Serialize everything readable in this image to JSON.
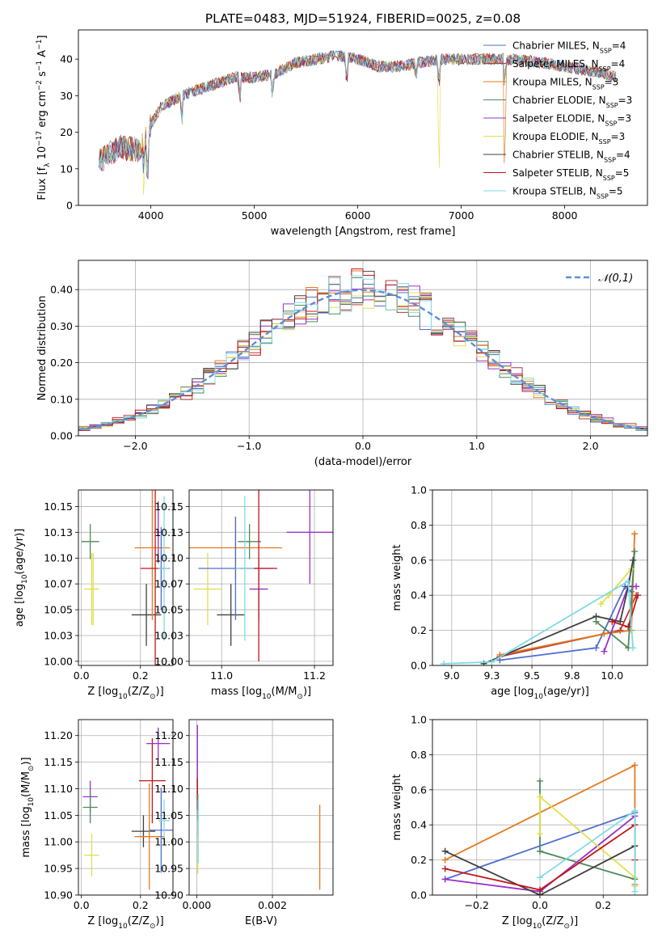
{
  "title": "PLATE=0483, MJD=51924, FIBERID=0025, z=0.08",
  "colors": {
    "grid": "#b0b0b0",
    "axis": "#000000"
  },
  "series_styles": [
    {
      "name": "Chabrier MILES, N_SSP=4",
      "color": "#4f6fcf"
    },
    {
      "name": "Salpeter MILES, N_SSP=4",
      "color": "#b23c3c"
    },
    {
      "name": "Kroupa MILES, N_SSP=3",
      "color": "#e37a1f"
    },
    {
      "name": "Chabrier ELODIE, N_SSP=3",
      "color": "#4e8a5a"
    },
    {
      "name": "Salpeter ELODIE, N_SSP=3",
      "color": "#9b30c9"
    },
    {
      "name": "Kroupa ELODIE, N_SSP=3",
      "color": "#e0e050"
    },
    {
      "name": "Chabrier STELIB, N_SSP=4",
      "color": "#404040"
    },
    {
      "name": "Salpeter STELIB, N_SSP=5",
      "color": "#c01818"
    },
    {
      "name": "Kroupa STELIB, N_SSP=5",
      "color": "#7ddbe6"
    }
  ],
  "chart_data": [
    {
      "id": "spectrum",
      "type": "line",
      "xlabel": "wavelength [Angstrom, rest frame]",
      "ylabel": "Flux [f_λ 10^-17 erg cm^-2 s^-1 A^-1]",
      "xlim": [
        3300,
        8800
      ],
      "ylim": [
        0,
        48
      ],
      "xticks": [
        4000,
        5000,
        6000,
        7000,
        8000
      ],
      "yticks": [
        0,
        10,
        20,
        30,
        40
      ],
      "grid": false,
      "legend_position": "upper-right",
      "legend": [
        {
          "label": "Chabrier MILES, N",
          "sub": "SSP",
          "suffix": "=4"
        },
        {
          "label": "Salpeter MILES, N",
          "sub": "SSP",
          "suffix": "=4"
        },
        {
          "label": "Kroupa MILES, N",
          "sub": "SSP",
          "suffix": "=3"
        },
        {
          "label": "Chabrier ELODIE, N",
          "sub": "SSP",
          "suffix": "=3"
        },
        {
          "label": "Salpeter ELODIE, N",
          "sub": "SSP",
          "suffix": "=3"
        },
        {
          "label": "Kroupa ELODIE, N",
          "sub": "SSP",
          "suffix": "=3"
        },
        {
          "label": "Chabrier STELIB, N",
          "sub": "SSP",
          "suffix": "=4"
        },
        {
          "label": "Salpeter STELIB, N",
          "sub": "SSP",
          "suffix": "=5"
        },
        {
          "label": "Kroupa STELIB, N",
          "sub": "SSP",
          "suffix": "=5"
        }
      ],
      "continuum": {
        "x": [
          3500,
          3700,
          3900,
          4000,
          4100,
          4300,
          4500,
          4800,
          5000,
          5200,
          5400,
          5600,
          5800,
          6000,
          6200,
          6400,
          6600,
          6800,
          7000,
          7200,
          7500,
          7800,
          8000,
          8200,
          8400,
          8500
        ],
        "y": [
          12,
          16,
          15,
          22,
          27,
          30,
          32,
          35,
          35,
          36,
          39,
          40,
          41,
          40,
          38,
          38,
          39,
          40,
          40,
          40,
          40,
          39,
          38,
          37,
          36,
          35
        ]
      },
      "dips": [
        {
          "x": 3934,
          "y": 0
        },
        {
          "x": 3968,
          "y": 4
        },
        {
          "x": 4300,
          "y": 22
        },
        {
          "x": 4861,
          "y": 28
        },
        {
          "x": 5175,
          "y": 29
        },
        {
          "x": 5893,
          "y": 32
        },
        {
          "x": 6563,
          "y": 34
        },
        {
          "x": 6785,
          "y": 0
        },
        {
          "x": 7420,
          "y": 0
        }
      ]
    },
    {
      "id": "residuals",
      "type": "histogram",
      "xlabel": "(data-model)/error",
      "ylabel": "Normed distribution",
      "xlim": [
        -2.5,
        2.5
      ],
      "ylim": [
        0,
        0.48
      ],
      "xticks": [
        -2,
        -1,
        0,
        1,
        2
      ],
      "yticks": [
        0.0,
        0.1,
        0.2,
        0.3,
        0.4
      ],
      "grid": true,
      "legend_position": "upper-right",
      "reference_label": "𝒩(0,1)",
      "bin_width": 0.1
    },
    {
      "id": "age-vs-Z",
      "type": "scatter",
      "xlabel": "Z [log10(Z/Z⊙)]",
      "ylabel": "age [log10(age/yr)]",
      "xlim": [
        -0.01,
        0.31
      ],
      "ylim": [
        9.996,
        10.166
      ],
      "xticks": [
        0.0,
        0.2
      ],
      "yticks": [
        10.0,
        10.025,
        10.05,
        10.075,
        10.1,
        10.125,
        10.15
      ],
      "grid": true,
      "points": [
        {
          "x": 0.03,
          "y": 10.116,
          "dx": 0.03,
          "dy": 0.017,
          "c": 3
        },
        {
          "x": 0.035,
          "y": 10.07,
          "dx": 0.025,
          "dy": 0.035,
          "c": 5
        },
        {
          "x": 0.04,
          "y": 10.07,
          "dx": 0.02,
          "dy": 0.035,
          "c": 5
        },
        {
          "x": 0.22,
          "y": 10.045,
          "dx": 0.05,
          "dy": 0.03,
          "c": 6
        },
        {
          "x": 0.24,
          "y": 10.11,
          "dx": 0.06,
          "dy": 0.07,
          "c": 2
        },
        {
          "x": 0.25,
          "y": 10.09,
          "dx": 0.05,
          "dy": 0.1,
          "c": 7
        },
        {
          "x": 0.26,
          "y": 10.125,
          "dx": 0.015,
          "dy": 0.03,
          "c": 4
        },
        {
          "x": 0.27,
          "y": 10.09,
          "dx": 0.01,
          "dy": 0.04,
          "c": 0
        },
        {
          "x": 0.28,
          "y": 10.09,
          "dx": 0.02,
          "dy": 0.07,
          "c": 8
        }
      ]
    },
    {
      "id": "age-vs-mass",
      "type": "scatter",
      "xlabel": "mass [log10(M/M⊙)]",
      "ylabel": "",
      "xlim": [
        10.93,
        11.24
      ],
      "ylim": [
        9.996,
        10.166
      ],
      "xticks": [
        11.0,
        11.2
      ],
      "yticks": [
        10.0,
        10.025,
        10.05,
        10.075,
        10.1,
        10.125,
        10.15
      ],
      "grid": true,
      "points": [
        {
          "x": 11.06,
          "y": 10.116,
          "dx": 0.025,
          "dy": 0.017,
          "c": 3
        },
        {
          "x": 10.97,
          "y": 10.07,
          "dx": 0.03,
          "dy": 0.035,
          "c": 5
        },
        {
          "x": 11.03,
          "y": 10.11,
          "dx": 0.1,
          "dy": 0.03,
          "c": 2
        },
        {
          "x": 11.02,
          "y": 10.045,
          "dx": 0.03,
          "dy": 0.03,
          "c": 6
        },
        {
          "x": 11.03,
          "y": 10.09,
          "dx": 0.08,
          "dy": 0.05,
          "c": 0
        },
        {
          "x": 11.08,
          "y": 10.07,
          "dx": 0.02,
          "dy": 0.03,
          "c": 4
        },
        {
          "x": 11.08,
          "y": 10.09,
          "dx": 0.04,
          "dy": 0.09,
          "c": 7
        },
        {
          "x": 11.05,
          "y": 10.09,
          "dx": 0.02,
          "dy": 0.07,
          "c": 8
        },
        {
          "x": 11.19,
          "y": 10.125,
          "dx": 0.05,
          "dy": 0.05,
          "c": 4
        }
      ]
    },
    {
      "id": "weight-vs-age",
      "type": "line",
      "xlabel": "age [log10(age/yr)]",
      "ylabel": "mass weight",
      "xlim": [
        8.88,
        10.22
      ],
      "ylim": [
        0,
        1.0
      ],
      "xticks": [
        9.0,
        9.25,
        9.5,
        9.75,
        10.0
      ],
      "yticks": [
        0.0,
        0.2,
        0.4,
        0.6,
        0.8,
        1.0
      ],
      "grid": true,
      "series": [
        {
          "c": 0,
          "x": [
            9.3,
            9.9,
            10.08,
            10.12
          ],
          "y": [
            0.03,
            0.1,
            0.45,
            0.42
          ]
        },
        {
          "c": 1,
          "x": [
            9.3,
            10.05,
            10.15
          ],
          "y": [
            0.05,
            0.2,
            0.4
          ]
        },
        {
          "c": 2,
          "x": [
            9.3,
            9.95,
            10.12,
            10.14
          ],
          "y": [
            0.06,
            0.18,
            0.2,
            0.75
          ]
        },
        {
          "c": 3,
          "x": [
            9.9,
            10.1,
            10.14
          ],
          "y": [
            0.25,
            0.1,
            0.65
          ]
        },
        {
          "c": 4,
          "x": [
            9.95,
            10.1,
            10.15
          ],
          "y": [
            0.08,
            0.45,
            0.45
          ]
        },
        {
          "c": 5,
          "x": [
            9.93,
            9.98,
            10.12
          ],
          "y": [
            0.35,
            0.4,
            0.55
          ]
        },
        {
          "c": 6,
          "x": [
            9.2,
            9.9,
            10.05,
            10.1,
            10.13
          ],
          "y": [
            0.01,
            0.28,
            0.25,
            0.45,
            0.6
          ]
        },
        {
          "c": 7,
          "x": [
            10.0,
            10.1,
            10.16
          ],
          "y": [
            0.25,
            0.22,
            0.4
          ]
        },
        {
          "c": 8,
          "x": [
            8.95,
            9.25,
            10.1,
            10.13
          ],
          "y": [
            0.01,
            0.02,
            0.48,
            0.1
          ]
        }
      ]
    },
    {
      "id": "mass-vs-Z",
      "type": "scatter",
      "xlabel": "Z [log10(Z/Z⊙)]",
      "ylabel": "mass [log10(M/M⊙)]",
      "xlim": [
        -0.01,
        0.31
      ],
      "ylim": [
        10.9,
        11.23
      ],
      "xticks": [
        0.0,
        0.2
      ],
      "yticks": [
        10.9,
        10.95,
        11.0,
        11.05,
        11.1,
        11.15,
        11.2
      ],
      "grid": true,
      "points": [
        {
          "x": 0.03,
          "y": 11.085,
          "dx": 0.025,
          "dy": 0.03,
          "c": 4
        },
        {
          "x": 0.03,
          "y": 11.065,
          "dx": 0.025,
          "dy": 0.03,
          "c": 3
        },
        {
          "x": 0.035,
          "y": 10.975,
          "dx": 0.025,
          "dy": 0.04,
          "c": 5
        },
        {
          "x": 0.21,
          "y": 11.02,
          "dx": 0.04,
          "dy": 0.03,
          "c": 6
        },
        {
          "x": 0.23,
          "y": 11.01,
          "dx": 0.05,
          "dy": 0.1,
          "c": 2
        },
        {
          "x": 0.24,
          "y": 11.115,
          "dx": 0.045,
          "dy": 0.08,
          "c": 7
        },
        {
          "x": 0.26,
          "y": 11.185,
          "dx": 0.04,
          "dy": 0.03,
          "c": 4
        },
        {
          "x": 0.27,
          "y": 11.022,
          "dx": 0.04,
          "dy": 0.08,
          "c": 0
        },
        {
          "x": 0.28,
          "y": 11.04,
          "dx": 0.02,
          "dy": 0.04,
          "c": 8
        }
      ]
    },
    {
      "id": "mass-vs-ebv",
      "type": "scatter",
      "xlabel": "E(B-V)",
      "ylabel": "",
      "xlim": [
        -0.0002,
        0.0036
      ],
      "ylim": [
        10.9,
        11.23
      ],
      "xticks": [
        0.0,
        0.002
      ],
      "yticks": [
        10.9,
        10.95,
        11.0,
        11.05,
        11.1,
        11.15,
        11.2
      ],
      "grid": true,
      "points": [
        {
          "x": 2e-05,
          "y": 11.15,
          "dx": 0,
          "dy": 0.07,
          "c": 4
        },
        {
          "x": 2e-05,
          "y": 11.09,
          "dx": 0,
          "dy": 0.03,
          "c": 7
        },
        {
          "x": 3e-05,
          "y": 11.05,
          "dx": 0,
          "dy": 0.04,
          "c": 3
        },
        {
          "x": 3e-05,
          "y": 10.99,
          "dx": 0,
          "dy": 0.05,
          "c": 5
        },
        {
          "x": 4e-05,
          "y": 11.02,
          "dx": 0,
          "dy": 0.06,
          "c": 8
        },
        {
          "x": 0.00325,
          "y": 10.99,
          "dx": 0,
          "dy": 0.08,
          "c": 2
        }
      ]
    },
    {
      "id": "weight-vs-Z",
      "type": "line",
      "xlabel": "Z [log10(Z/Z⊙)]",
      "ylabel": "mass weight",
      "xlim": [
        -0.34,
        0.34
      ],
      "ylim": [
        0,
        1.0
      ],
      "xticks": [
        -0.2,
        0.0,
        0.2
      ],
      "yticks": [
        0.0,
        0.2,
        0.4,
        0.6,
        0.8,
        1.0
      ],
      "grid": true,
      "series": [
        {
          "c": 0,
          "x": [
            -0.3,
            0.3,
            0.3
          ],
          "y": [
            0.09,
            0.47,
            0.4
          ]
        },
        {
          "c": 2,
          "x": [
            -0.3,
            0.3,
            0.3
          ],
          "y": [
            0.2,
            0.74,
            0.06
          ]
        },
        {
          "c": 3,
          "x": [
            0.0,
            0.0,
            0.3
          ],
          "y": [
            0.65,
            0.25,
            0.09
          ]
        },
        {
          "c": 4,
          "x": [
            -0.3,
            0.0,
            0.3,
            0.3
          ],
          "y": [
            0.09,
            0.02,
            0.45,
            0.4
          ]
        },
        {
          "c": 5,
          "x": [
            0.0,
            0.0,
            0.3,
            0.3
          ],
          "y": [
            0.35,
            0.56,
            0.1,
            0.05
          ]
        },
        {
          "c": 6,
          "x": [
            -0.3,
            0.0,
            0.3
          ],
          "y": [
            0.25,
            0.0,
            0.28
          ]
        },
        {
          "c": 7,
          "x": [
            -0.3,
            0.0,
            0.3,
            0.3
          ],
          "y": [
            0.15,
            0.03,
            0.4,
            0.2
          ]
        },
        {
          "c": 8,
          "x": [
            0.0,
            0.3,
            0.3
          ],
          "y": [
            0.1,
            0.48,
            0.02
          ]
        }
      ]
    }
  ]
}
